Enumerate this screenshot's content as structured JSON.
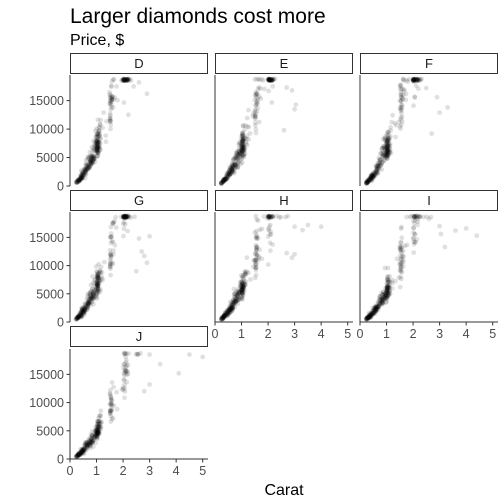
{
  "chart_data": {
    "type": "scatter",
    "title": "Larger diamonds cost more",
    "subtitle": "Price, $",
    "xlabel": "Carat",
    "ylabel": "",
    "xlim": [
      0,
      5.2
    ],
    "ylim": [
      0,
      19500
    ],
    "x_ticks": [
      0,
      1,
      2,
      3,
      4,
      5
    ],
    "y_ticks": [
      0,
      5000,
      10000,
      15000
    ],
    "y_tick_labels": [
      "0",
      "5000",
      "10000",
      "15000"
    ],
    "x_tick_labels": [
      "0",
      "1",
      "2",
      "3",
      "4",
      "5"
    ],
    "grid": false,
    "point_color": "#000000",
    "point_alpha": 0.12,
    "facet_by": "color",
    "facets": [
      {
        "label": "D",
        "outliers": [
          [
            2.6,
            18200
          ],
          [
            2.9,
            16200
          ],
          [
            2.4,
            17500
          ],
          [
            2.2,
            12500
          ]
        ]
      },
      {
        "label": "E",
        "outliers": [
          [
            2.7,
            17300
          ],
          [
            2.9,
            16800
          ],
          [
            3.0,
            13500
          ],
          [
            3.05,
            14300
          ],
          [
            2.6,
            9800
          ]
        ]
      },
      {
        "label": "F",
        "outliers": [
          [
            2.5,
            17200
          ],
          [
            2.9,
            15600
          ],
          [
            3.0,
            12900
          ],
          [
            3.3,
            13800
          ],
          [
            2.7,
            9200
          ]
        ]
      },
      {
        "label": "G",
        "outliers": [
          [
            2.6,
            14800
          ],
          [
            2.7,
            12500
          ],
          [
            2.8,
            11700
          ],
          [
            3.0,
            15200
          ],
          [
            2.9,
            10500
          ],
          [
            2.5,
            9000
          ]
        ]
      },
      {
        "label": "H",
        "outliers": [
          [
            3.0,
            16900
          ],
          [
            3.3,
            16300
          ],
          [
            3.5,
            17200
          ],
          [
            4.0,
            16900
          ],
          [
            2.7,
            12200
          ],
          [
            3.0,
            12000
          ],
          [
            2.9,
            11400
          ]
        ]
      },
      {
        "label": "I",
        "outliers": [
          [
            2.6,
            18300
          ],
          [
            3.0,
            17000
          ],
          [
            3.05,
            15600
          ],
          [
            3.6,
            16200
          ],
          [
            4.0,
            16600
          ],
          [
            4.4,
            15300
          ],
          [
            3.2,
            13300
          ]
        ]
      },
      {
        "label": "J",
        "outliers": [
          [
            3.0,
            18500
          ],
          [
            3.4,
            16800
          ],
          [
            4.5,
            18500
          ],
          [
            5.0,
            18100
          ],
          [
            4.1,
            15200
          ],
          [
            3.0,
            13200
          ],
          [
            2.8,
            12000
          ]
        ]
      }
    ]
  }
}
